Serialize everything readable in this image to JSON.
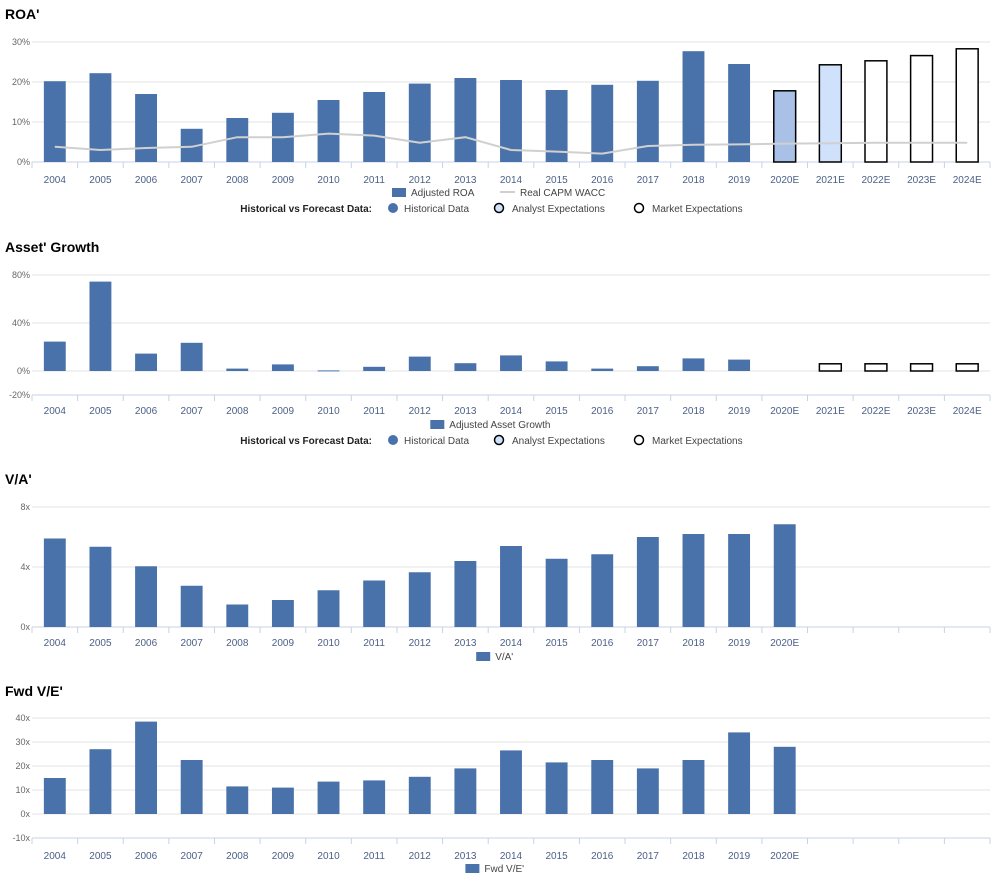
{
  "colors": {
    "historical": "#4a72aa",
    "analyst_fill": "#a9c1e6",
    "forecast_fill": "#cfe1fb",
    "market_fill": "#ffffff",
    "forecast_stroke": "#000000",
    "wacc_line": "#d0d0d0",
    "grid": "#e3e3e3",
    "axis": "#c8d2e4"
  },
  "legend_common": {
    "label": "Historical vs Forecast Data:",
    "historical": "Historical Data",
    "analyst": "Analyst Expectations",
    "market": "Market Expectations"
  },
  "chart_data": [
    {
      "id": "roa",
      "type": "bar",
      "title": "ROA'",
      "categories": [
        "2004",
        "2005",
        "2006",
        "2007",
        "2008",
        "2009",
        "2010",
        "2011",
        "2012",
        "2013",
        "2014",
        "2015",
        "2016",
        "2017",
        "2018",
        "2019",
        "2020E",
        "2021E",
        "2022E",
        "2023E",
        "2024E"
      ],
      "series": [
        {
          "name": "Adjusted ROA",
          "values": [
            20.2,
            22.2,
            17.0,
            8.3,
            11.0,
            12.3,
            15.5,
            17.5,
            19.6,
            21.0,
            20.5,
            18.0,
            19.3,
            20.3,
            27.7,
            24.5,
            17.8,
            24.3,
            25.3,
            26.6,
            28.3
          ]
        },
        {
          "name": "Real CAPM WACC",
          "type": "line",
          "values": [
            3.8,
            3.0,
            3.5,
            3.8,
            6.2,
            6.2,
            7.1,
            6.6,
            4.8,
            6.2,
            3.0,
            2.6,
            2.1,
            4.0,
            4.3,
            4.4,
            4.6,
            4.7,
            4.8,
            4.8,
            4.8
          ]
        }
      ],
      "status": [
        "h",
        "h",
        "h",
        "h",
        "h",
        "h",
        "h",
        "h",
        "h",
        "h",
        "h",
        "h",
        "h",
        "h",
        "h",
        "h",
        "a",
        "f",
        "m",
        "m",
        "m"
      ],
      "ylim": [
        0,
        30
      ],
      "yticks": [
        0,
        10,
        20,
        30
      ],
      "ytick_labels": [
        "0%",
        "10%",
        "20%",
        "30%"
      ],
      "legend": {
        "series": [
          "Adjusted ROA",
          "Real CAPM WACC"
        ],
        "forecast_row": true
      }
    },
    {
      "id": "growth",
      "type": "bar",
      "title": "Asset' Growth",
      "categories": [
        "2004",
        "2005",
        "2006",
        "2007",
        "2008",
        "2009",
        "2010",
        "2011",
        "2012",
        "2013",
        "2014",
        "2015",
        "2016",
        "2017",
        "2018",
        "2019",
        "2020E",
        "2021E",
        "2022E",
        "2023E",
        "2024E"
      ],
      "series": [
        {
          "name": "Adjusted Asset Growth",
          "values": [
            24.5,
            74.5,
            14.5,
            23.5,
            2.0,
            5.5,
            0.5,
            3.5,
            12.0,
            6.5,
            13.0,
            8.0,
            2.0,
            4.0,
            10.5,
            9.5,
            null,
            6.0,
            6.0,
            6.0,
            6.0
          ]
        }
      ],
      "status": [
        "h",
        "h",
        "h",
        "h",
        "h",
        "h",
        "h",
        "h",
        "h",
        "h",
        "h",
        "h",
        "h",
        "h",
        "h",
        "h",
        "h",
        "m",
        "m",
        "m",
        "m"
      ],
      "ylim": [
        -20,
        80
      ],
      "yticks": [
        -20,
        0,
        40,
        80
      ],
      "ytick_labels": [
        "-20%",
        "0%",
        "40%",
        "80%"
      ],
      "legend": {
        "series": [
          "Adjusted Asset Growth"
        ],
        "forecast_row": true
      }
    },
    {
      "id": "va",
      "type": "bar",
      "title": "V/A'",
      "categories": [
        "2004",
        "2005",
        "2006",
        "2007",
        "2008",
        "2009",
        "2010",
        "2011",
        "2012",
        "2013",
        "2014",
        "2015",
        "2016",
        "2017",
        "2018",
        "2019",
        "2020E",
        "",
        "",
        "",
        ""
      ],
      "series": [
        {
          "name": "V/A'",
          "values": [
            5.9,
            5.35,
            4.05,
            2.75,
            1.5,
            1.8,
            2.45,
            3.1,
            3.65,
            4.4,
            5.4,
            4.55,
            4.85,
            6.0,
            6.2,
            6.2,
            6.85,
            null,
            null,
            null,
            null
          ]
        }
      ],
      "status": [
        "h",
        "h",
        "h",
        "h",
        "h",
        "h",
        "h",
        "h",
        "h",
        "h",
        "h",
        "h",
        "h",
        "h",
        "h",
        "h",
        "h",
        "h",
        "h",
        "h",
        "h"
      ],
      "ylim": [
        0,
        8
      ],
      "yticks": [
        0,
        4,
        8
      ],
      "ytick_labels": [
        "0x",
        "4x",
        "8x"
      ],
      "legend": {
        "series": [
          "V/A'"
        ],
        "forecast_row": false
      }
    },
    {
      "id": "fwdve",
      "type": "bar",
      "title": "Fwd V/E'",
      "categories": [
        "2004",
        "2005",
        "2006",
        "2007",
        "2008",
        "2009",
        "2010",
        "2011",
        "2012",
        "2013",
        "2014",
        "2015",
        "2016",
        "2017",
        "2018",
        "2019",
        "2020E",
        "",
        "",
        "",
        ""
      ],
      "series": [
        {
          "name": "Fwd V/E'",
          "values": [
            15.0,
            27.0,
            38.5,
            22.5,
            11.5,
            11.0,
            13.5,
            14.0,
            15.5,
            19.0,
            26.5,
            21.5,
            22.5,
            19.0,
            22.5,
            34.0,
            28.0,
            null,
            null,
            null,
            null
          ]
        }
      ],
      "status": [
        "h",
        "h",
        "h",
        "h",
        "h",
        "h",
        "h",
        "h",
        "h",
        "h",
        "h",
        "h",
        "h",
        "h",
        "h",
        "h",
        "h",
        "h",
        "h",
        "h",
        "h"
      ],
      "ylim": [
        -10,
        40
      ],
      "yticks": [
        -10,
        0,
        10,
        20,
        30,
        40
      ],
      "ytick_labels": [
        "-10x",
        "0x",
        "10x",
        "20x",
        "30x",
        "40x"
      ],
      "legend": {
        "series": [
          "Fwd V/E'"
        ],
        "forecast_row": false
      }
    }
  ]
}
